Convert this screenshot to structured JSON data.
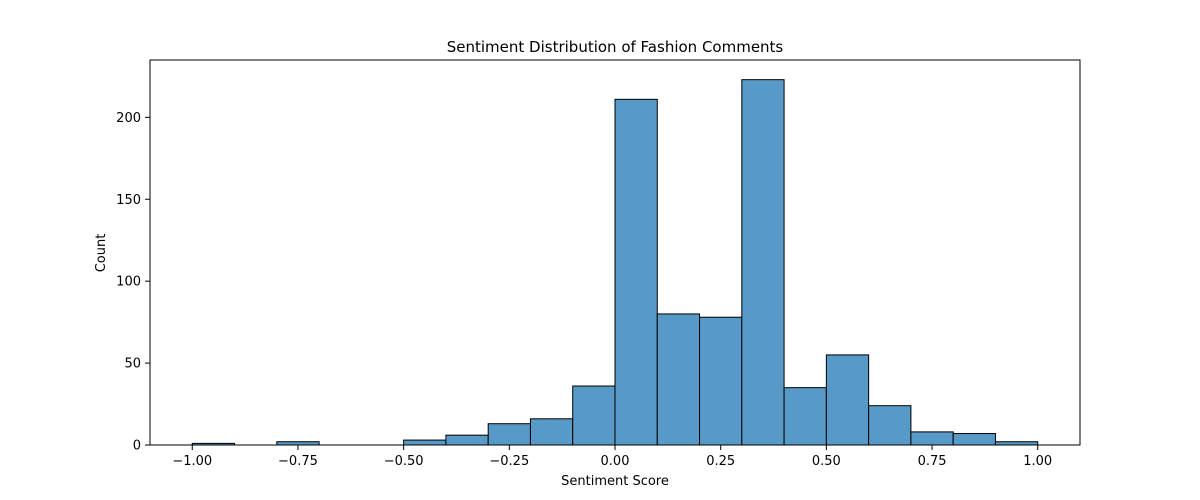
{
  "chart_data": {
    "type": "bar",
    "title": "Sentiment Distribution of Fashion Comments",
    "xlabel": "Sentiment Score",
    "ylabel": "Count",
    "xlim": [
      -1.1,
      1.1
    ],
    "ylim": [
      0,
      235
    ],
    "bar_color": "#5799c7",
    "edge_color": "#000000",
    "grid": false,
    "legend": "none",
    "x_ticks": [
      {
        "value": -1.0,
        "label": "−1.00"
      },
      {
        "value": -0.75,
        "label": "−0.75"
      },
      {
        "value": -0.5,
        "label": "−0.50"
      },
      {
        "value": -0.25,
        "label": "−0.25"
      },
      {
        "value": 0.0,
        "label": "0.00"
      },
      {
        "value": 0.25,
        "label": "0.25"
      },
      {
        "value": 0.5,
        "label": "0.50"
      },
      {
        "value": 0.75,
        "label": "0.75"
      },
      {
        "value": 1.0,
        "label": "1.00"
      }
    ],
    "y_ticks": [
      {
        "value": 0,
        "label": "0"
      },
      {
        "value": 50,
        "label": "50"
      },
      {
        "value": 100,
        "label": "100"
      },
      {
        "value": 150,
        "label": "150"
      },
      {
        "value": 200,
        "label": "200"
      }
    ],
    "bins": [
      {
        "x0": -1.0,
        "x1": -0.9,
        "count": 1
      },
      {
        "x0": -0.9,
        "x1": -0.8,
        "count": 0
      },
      {
        "x0": -0.8,
        "x1": -0.7,
        "count": 2
      },
      {
        "x0": -0.7,
        "x1": -0.6,
        "count": 0
      },
      {
        "x0": -0.6,
        "x1": -0.5,
        "count": 0
      },
      {
        "x0": -0.5,
        "x1": -0.4,
        "count": 3
      },
      {
        "x0": -0.4,
        "x1": -0.3,
        "count": 6
      },
      {
        "x0": -0.3,
        "x1": -0.2,
        "count": 13
      },
      {
        "x0": -0.2,
        "x1": -0.1,
        "count": 16
      },
      {
        "x0": -0.1,
        "x1": 0.0,
        "count": 36
      },
      {
        "x0": 0.0,
        "x1": 0.1,
        "count": 211
      },
      {
        "x0": 0.1,
        "x1": 0.2,
        "count": 80
      },
      {
        "x0": 0.2,
        "x1": 0.3,
        "count": 78
      },
      {
        "x0": 0.3,
        "x1": 0.4,
        "count": 223
      },
      {
        "x0": 0.4,
        "x1": 0.5,
        "count": 35
      },
      {
        "x0": 0.5,
        "x1": 0.6,
        "count": 55
      },
      {
        "x0": 0.6,
        "x1": 0.7,
        "count": 24
      },
      {
        "x0": 0.7,
        "x1": 0.8,
        "count": 8
      },
      {
        "x0": 0.8,
        "x1": 0.9,
        "count": 7
      },
      {
        "x0": 0.9,
        "x1": 1.0,
        "count": 2
      }
    ]
  }
}
